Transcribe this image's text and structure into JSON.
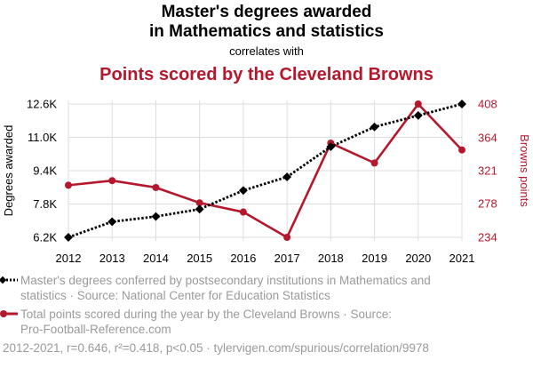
{
  "colors": {
    "series1": "#000000",
    "series2": "#b5172c",
    "grid": "#dddddd",
    "muted": "#9a9a9a"
  },
  "titles": {
    "line1": "Master's degrees awarded",
    "line2": "in Mathematics and statistics",
    "connector": "correlates with",
    "line3": "Points scored by the Cleveland Browns"
  },
  "chart_data": {
    "type": "line",
    "x": [
      "2012",
      "2013",
      "2014",
      "2015",
      "2016",
      "2017",
      "2018",
      "2019",
      "2020",
      "2021"
    ],
    "series": [
      {
        "name": "Master's degrees conferred by postsecondary institutions in Mathematics and statistics",
        "axis": "left",
        "values": [
          6200,
          6950,
          7200,
          7550,
          8450,
          9100,
          10550,
          11500,
          12050,
          12600
        ],
        "marker": "diamond",
        "line_style": "dotted"
      },
      {
        "name": "Total points scored during the year by the Cleveland Browns",
        "axis": "right",
        "values": [
          302,
          308,
          299,
          279,
          267,
          234,
          357,
          331,
          408,
          348
        ],
        "marker": "circle",
        "line_style": "solid"
      }
    ],
    "ylabel_left": "Degrees awarded",
    "ylabel_right": "Browns points",
    "yticks_left": [
      "6.2K",
      "7.8K",
      "9.4K",
      "11.0K",
      "12.6K"
    ],
    "yticks_left_values": [
      6200,
      7800,
      9400,
      11000,
      12600
    ],
    "yticks_right": [
      "234",
      "278",
      "321",
      "364",
      "408"
    ],
    "yticks_right_values": [
      234,
      278,
      321,
      364,
      408
    ],
    "ylim_left": [
      6200,
      12600
    ],
    "ylim_right": [
      234,
      408
    ],
    "grid": true
  },
  "legend": {
    "item1": {
      "line1": "Master's degrees conferred by postsecondary institutions in Mathematics and",
      "line2": "statistics · Source: National Center for Education Statistics"
    },
    "item2": {
      "line1": "Total points scored during the year by the Cleveland Browns · Source:",
      "line2": "Pro-Football-Reference.com"
    }
  },
  "footer": "2012-2021, r=0.646, r²=0.418, p<0.05 · tylervigen.com/spurious/correlation/9978"
}
